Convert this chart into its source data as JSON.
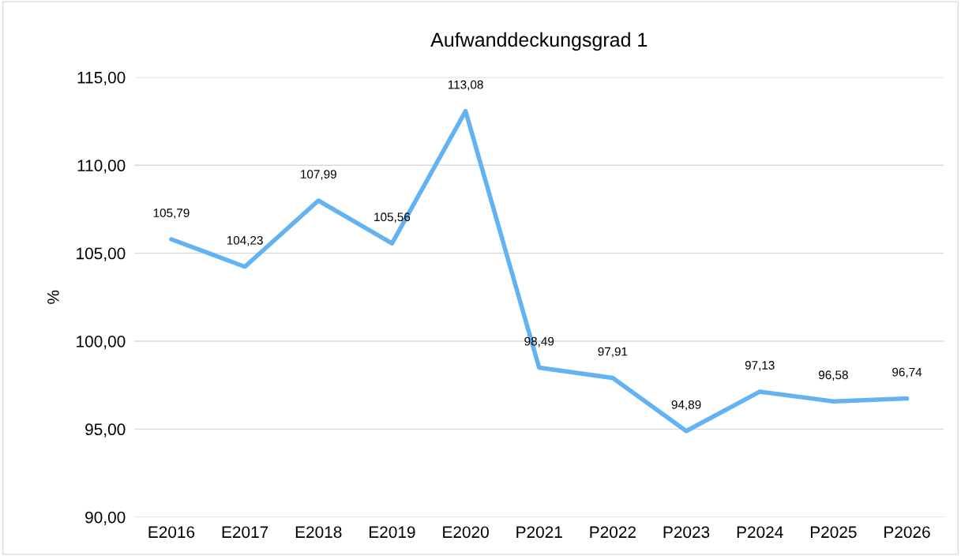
{
  "chart_data": {
    "type": "line",
    "title": "Aufwanddeckungsgrad 1",
    "ylabel": "%",
    "categories": [
      "E2016",
      "E2017",
      "E2018",
      "E2019",
      "E2020",
      "P2021",
      "P2022",
      "P2023",
      "P2024",
      "P2025",
      "P2026"
    ],
    "series": [
      {
        "color": "#63b3f2",
        "values": [
          105.79,
          104.23,
          107.99,
          105.56,
          113.08,
          98.49,
          97.91,
          94.89,
          97.13,
          96.58,
          96.74
        ],
        "value_labels": [
          "105,79",
          "104,23",
          "107,99",
          "105,56",
          "113,08",
          "98,49",
          "97,91",
          "94,89",
          "97,13",
          "96,58",
          "96,74"
        ]
      }
    ],
    "ylim": [
      90,
      115
    ],
    "yticks": [
      {
        "value": 90,
        "label": "90,00"
      },
      {
        "value": 95,
        "label": "95,00"
      },
      {
        "value": 100,
        "label": "100,00"
      },
      {
        "value": 105,
        "label": "105,00"
      },
      {
        "value": 110,
        "label": "110,00"
      },
      {
        "value": 115,
        "label": "115,00"
      }
    ],
    "grid": "y",
    "legend": false,
    "marker": "none",
    "line_style": "solid"
  }
}
